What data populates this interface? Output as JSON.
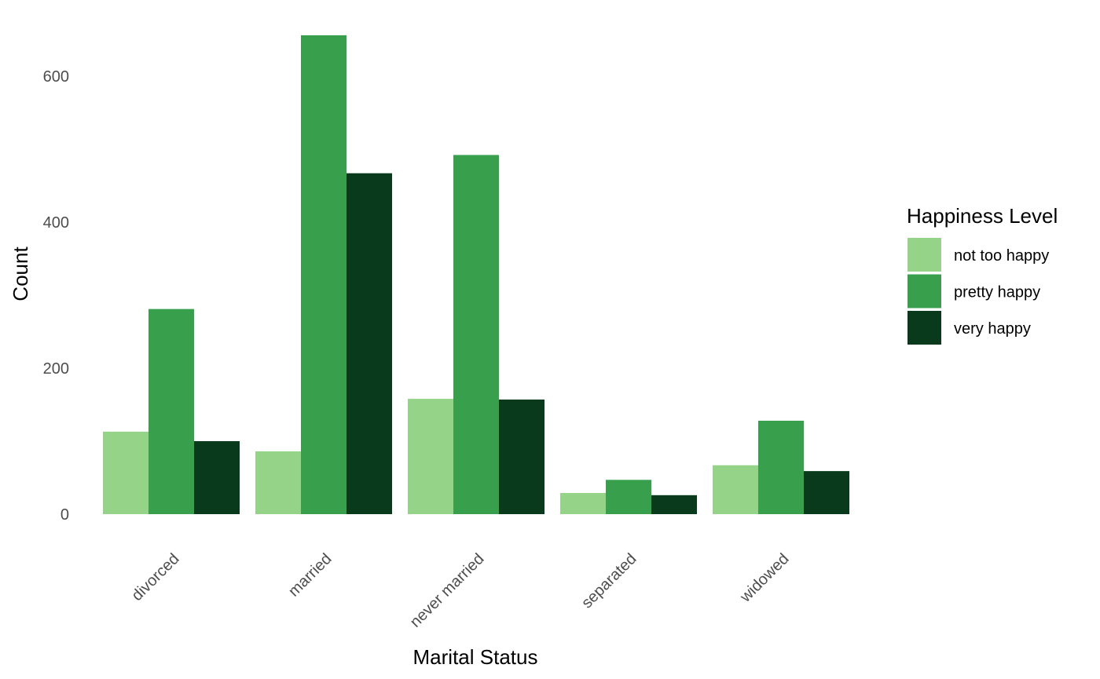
{
  "chart_data": {
    "type": "bar",
    "xlabel": "Marital Status",
    "ylabel": "Count",
    "categories": [
      "divorced",
      "married",
      "never married",
      "separated",
      "widowed"
    ],
    "series": [
      {
        "name": "not too happy",
        "color": "#95d389",
        "values": [
          113,
          86,
          158,
          29,
          67
        ]
      },
      {
        "name": "pretty happy",
        "color": "#38a04c",
        "values": [
          281,
          656,
          492,
          47,
          128
        ]
      },
      {
        "name": "very happy",
        "color": "#083a1b",
        "values": [
          100,
          467,
          157,
          26,
          59
        ]
      }
    ],
    "yticks": [
      0,
      200,
      400,
      600
    ],
    "ylim": [
      0,
      656
    ],
    "grid": false,
    "legend": {
      "title": "Happiness Level",
      "position": "right"
    }
  }
}
